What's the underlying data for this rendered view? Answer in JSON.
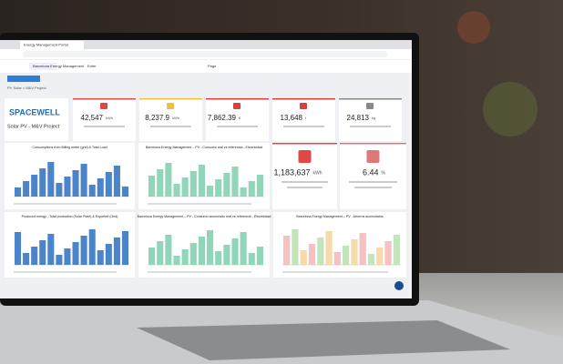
{
  "browser": {
    "tab": "Energy Management Portal"
  },
  "app": {
    "site": "Barcelona Energy Management",
    "search": "Enter",
    "page": "Page"
  },
  "breadcrumb": "PV Solar > M&V Project",
  "logo": "SPACEWELL",
  "project": "Solar PV - M&V Project",
  "kpis": [
    {
      "value": "42,547",
      "unit": "kWh"
    },
    {
      "value": "8,237.9",
      "unit": "kWh"
    },
    {
      "value": "7,862.39",
      "unit": "€"
    },
    {
      "value": "13,648",
      "unit": "t"
    },
    {
      "value": "24,813",
      "unit": "kg"
    }
  ],
  "charts": [
    {
      "title": "Consumptions from Billing meter (grid) & Total Load"
    },
    {
      "title": "Barcelona Energy Management – PV - Consumo real vs referencia - Electricidad"
    },
    {
      "title": "Produced energy - Total production (Solar Plant) & Exported (Grid)"
    },
    {
      "title": "Barcelona Energy Management – PV - Consumo acumulado real vs referencia - Electricidad"
    },
    {
      "title": "Barcelona Energy Management – PV - Ahorros acumulados"
    }
  ],
  "big_cards": [
    {
      "value": "1,183,637",
      "unit": "kWh"
    },
    {
      "value": "6.44",
      "unit": "%"
    }
  ]
}
